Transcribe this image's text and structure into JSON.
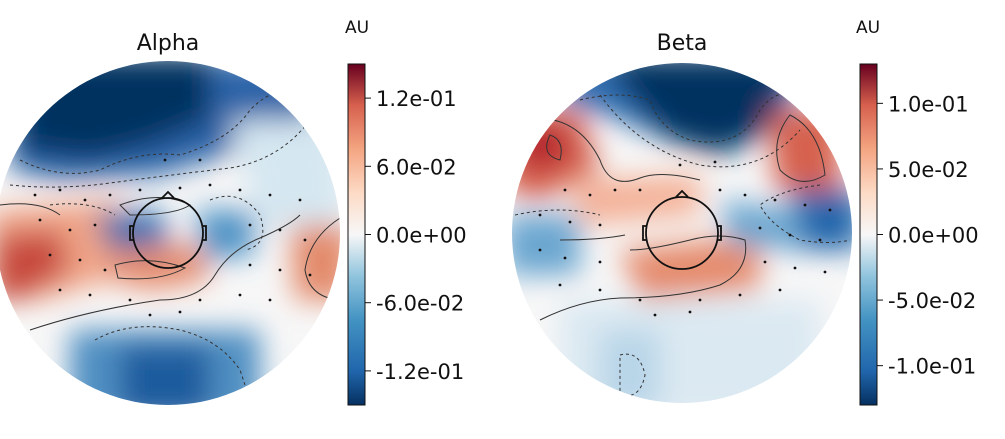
{
  "chart_data": [
    {
      "type": "heatmap",
      "title": "Alpha",
      "colorbar": {
        "label": "AU",
        "colormap": "RdBu_r",
        "range": [
          -0.15,
          0.15
        ],
        "ticks": [
          "1.2e-01",
          "6.0e-02",
          "0.0e+00",
          "-6.0e-02",
          "-1.2e-01"
        ]
      }
    },
    {
      "type": "heatmap",
      "title": "Beta",
      "colorbar": {
        "label": "AU",
        "colormap": "RdBu_r",
        "range": [
          -0.13,
          0.13
        ],
        "ticks": [
          "1.0e-01",
          "5.0e-02",
          "0.0e+00",
          "-5.0e-02",
          "-1.0e-01"
        ]
      }
    }
  ],
  "colors": {
    "deep_red": "#67001f",
    "red": "#d6604d",
    "light_red": "#f4a582",
    "neutral": "#f7f7f7",
    "light_blue": "#92c5de",
    "blue": "#4393c3",
    "deep_blue": "#053061"
  }
}
